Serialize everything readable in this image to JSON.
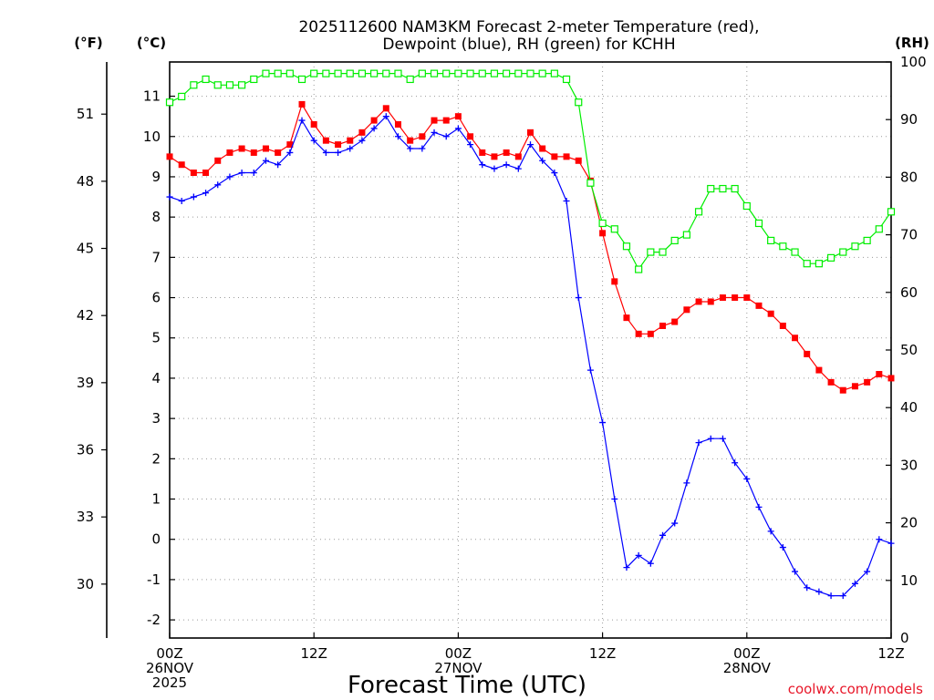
{
  "chart_data": {
    "type": "line",
    "title": "2025112600 NAM3KM Forecast 2-meter Temperature (red),",
    "subtitle": "Dewpoint (blue), RH (green) for KCHH",
    "xlabel": "Forecast Time (UTC)",
    "left_unit": "(°C)",
    "far_left_unit": "(°F)",
    "right_unit": "(RH)",
    "credit": "coolwx.com/models",
    "x_range_hours": [
      0,
      60
    ],
    "ylim_c": [
      -2.45,
      11.85
    ],
    "ylim_rh": [
      0,
      100
    ],
    "yticks_c": [
      -2,
      -1,
      0,
      1,
      2,
      3,
      4,
      5,
      6,
      7,
      8,
      9,
      10,
      11
    ],
    "yticks_f": [
      30,
      33,
      36,
      39,
      42,
      45,
      48,
      51
    ],
    "yticks_rh": [
      0,
      10,
      20,
      30,
      40,
      50,
      60,
      70,
      80,
      90,
      100
    ],
    "xticks": [
      {
        "hour": 0,
        "lines": [
          "00Z",
          "26NOV",
          "2025"
        ]
      },
      {
        "hour": 12,
        "lines": [
          "12Z"
        ]
      },
      {
        "hour": 24,
        "lines": [
          "00Z",
          "27NOV"
        ]
      },
      {
        "hour": 36,
        "lines": [
          "12Z"
        ]
      },
      {
        "hour": 48,
        "lines": [
          "00Z",
          "28NOV"
        ]
      },
      {
        "hour": 60,
        "lines": [
          "12Z"
        ]
      }
    ],
    "series": [
      {
        "name": "2-meter Temperature",
        "color": "#ff0000",
        "marker": "filled-square",
        "axis": "celsius",
        "values": [
          9.5,
          9.3,
          9.1,
          9.1,
          9.4,
          9.6,
          9.7,
          9.6,
          9.7,
          9.6,
          9.8,
          10.8,
          10.3,
          9.9,
          9.8,
          9.9,
          10.1,
          10.4,
          10.7,
          10.3,
          9.9,
          10.0,
          10.4,
          10.4,
          10.5,
          10.0,
          9.6,
          9.5,
          9.6,
          9.5,
          10.1,
          9.7,
          9.5,
          9.5,
          9.4,
          8.9,
          7.6,
          6.4,
          5.5,
          5.1,
          5.1,
          5.3,
          5.4,
          5.7,
          5.9,
          5.9,
          6.0,
          6.0,
          6.0,
          5.8,
          5.6,
          5.3,
          5.0,
          4.6,
          4.2,
          3.9,
          3.7,
          3.8,
          3.9,
          4.1,
          4.0
        ]
      },
      {
        "name": "Dewpoint",
        "color": "#0000ff",
        "marker": "plus",
        "axis": "celsius",
        "values": [
          8.5,
          8.4,
          8.5,
          8.6,
          8.8,
          9.0,
          9.1,
          9.1,
          9.4,
          9.3,
          9.6,
          10.4,
          9.9,
          9.6,
          9.6,
          9.7,
          9.9,
          10.2,
          10.5,
          10.0,
          9.7,
          9.7,
          10.1,
          10.0,
          10.2,
          9.8,
          9.3,
          9.2,
          9.3,
          9.2,
          9.8,
          9.4,
          9.1,
          8.4,
          6.0,
          4.2,
          2.9,
          1.0,
          -0.7,
          -0.4,
          -0.6,
          0.1,
          0.4,
          1.4,
          2.4,
          2.5,
          2.5,
          1.9,
          1.5,
          0.8,
          0.2,
          -0.2,
          -0.8,
          -1.2,
          -1.3,
          -1.4,
          -1.4,
          -1.1,
          -0.8,
          0.0,
          -0.1
        ]
      },
      {
        "name": "RH",
        "color": "#00ee00",
        "marker": "open-square",
        "axis": "rh",
        "values": [
          93,
          94,
          96,
          97,
          96,
          96,
          96,
          97,
          98,
          98,
          98,
          97,
          98,
          98,
          98,
          98,
          98,
          98,
          98,
          98,
          97,
          98,
          98,
          98,
          98,
          98,
          98,
          98,
          98,
          98,
          98,
          98,
          98,
          97,
          93,
          79,
          72,
          71,
          68,
          64,
          67,
          67,
          69,
          70,
          74,
          78,
          78,
          78,
          75,
          72,
          69,
          68,
          67,
          65,
          65,
          66,
          67,
          68,
          69,
          71,
          74
        ]
      }
    ]
  }
}
